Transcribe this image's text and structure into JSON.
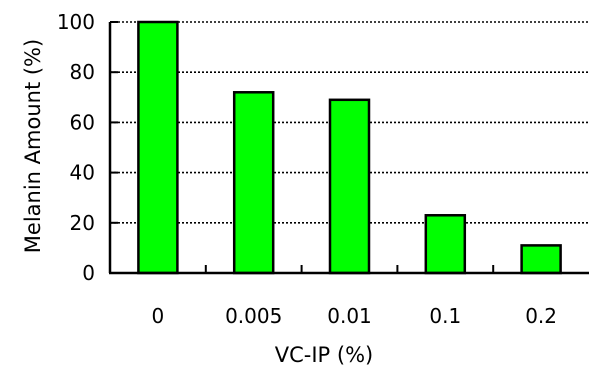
{
  "chart_data": {
    "type": "bar",
    "title": "",
    "xlabel": "VC-IP (%)",
    "ylabel": "Melanin Amount (%)",
    "categories": [
      "0",
      "0.005",
      "0.01",
      "0.1",
      "0.2"
    ],
    "values": [
      100,
      72,
      69,
      23,
      11
    ],
    "ylim": [
      0,
      100
    ],
    "yticks": [
      "0",
      "20",
      "40",
      "60",
      "80",
      "100"
    ],
    "grid": "horizontal dotted",
    "legend": "none",
    "bar_color": "#00ff00",
    "bar_edge_color": "#000000"
  }
}
